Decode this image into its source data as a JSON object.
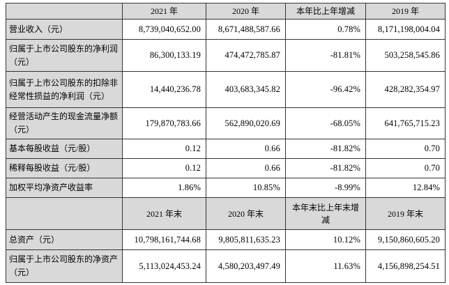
{
  "colors": {
    "header_bg": "#d9d9d9",
    "border": "#333333",
    "text": "#000000",
    "page_bg": "#ffffff"
  },
  "table": {
    "section1": {
      "headers": [
        "2021 年",
        "2020 年",
        "本年比上年增减",
        "2019 年"
      ],
      "rows": [
        {
          "label": "营业收入（元）",
          "v": [
            "8,739,040,652.00",
            "8,671,488,587.66",
            "0.78%",
            "8,171,198,004.04"
          ]
        },
        {
          "label": "归属于上市公司股东的净利润（元）",
          "v": [
            "86,300,133.19",
            "474,472,785.87",
            "-81.81%",
            "503,258,545.86"
          ]
        },
        {
          "label": "归属于上市公司股东的扣除非经常性损益的净利润（元）",
          "v": [
            "14,440,236.78",
            "403,683,345.82",
            "-96.42%",
            "428,282,354.97"
          ]
        },
        {
          "label": "经营活动产生的现金流量净额（元）",
          "v": [
            "179,870,783.66",
            "562,890,020.69",
            "-68.05%",
            "641,765,715.23"
          ]
        },
        {
          "label": "基本每股收益（元/股）",
          "v": [
            "0.12",
            "0.66",
            "-81.82%",
            "0.70"
          ]
        },
        {
          "label": "稀释每股收益（元/股）",
          "v": [
            "0.12",
            "0.66",
            "-81.82%",
            "0.70"
          ]
        },
        {
          "label": "加权平均净资产收益率",
          "v": [
            "1.86%",
            "10.85%",
            "-8.99%",
            "12.84%"
          ]
        }
      ]
    },
    "section2": {
      "headers": [
        "2021 年末",
        "2020 年末",
        "本年末比上年末增减",
        "2019 年末"
      ],
      "rows": [
        {
          "label": "总资产（元）",
          "v": [
            "10,798,161,744.68",
            "9,805,811,635.23",
            "10.12%",
            "9,150,860,605.20"
          ]
        },
        {
          "label": "归属于上市公司股东的净资产（元）",
          "v": [
            "5,113,024,453.24",
            "4,580,203,497.49",
            "11.63%",
            "4,156,898,254.51"
          ]
        }
      ]
    }
  }
}
